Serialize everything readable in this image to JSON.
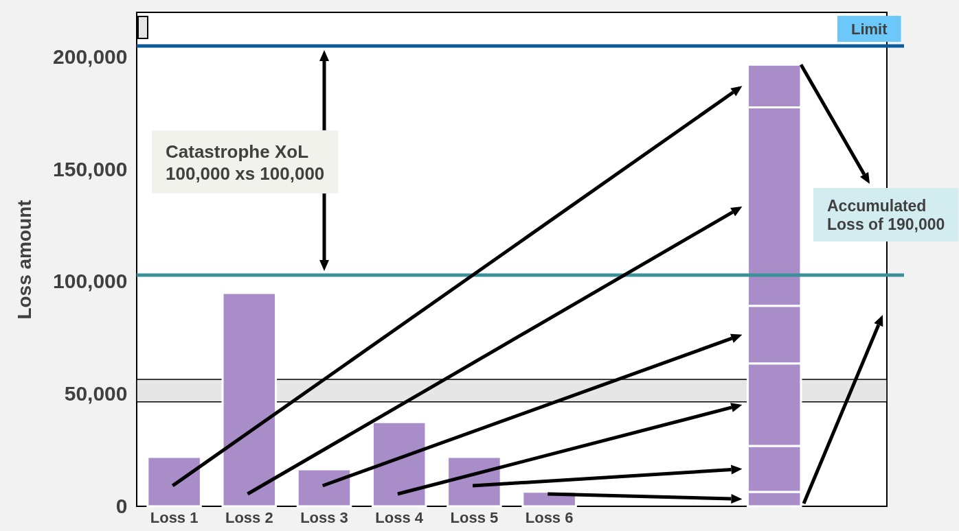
{
  "chart_data": {
    "type": "bar",
    "ylabel": "Loss amount",
    "categories": [
      "Loss 1",
      "Loss 2",
      "Loss 3",
      "Loss 4",
      "Loss 5",
      "Loss 6",
      null,
      null,
      null,
      null
    ],
    "stacked": true,
    "series": [
      {
        "color": "#a98dc8",
        "values": [
          22000,
          95000,
          16500,
          37500,
          22000,
          6500,
          null,
          null,
          6400,
          null
        ]
      },
      {
        "color": "#a98dc8",
        "values": [
          null,
          null,
          null,
          null,
          null,
          null,
          null,
          null,
          20500,
          null
        ]
      },
      {
        "color": "#a98dc8",
        "values": [
          null,
          null,
          null,
          null,
          null,
          null,
          null,
          null,
          36700,
          null
        ]
      },
      {
        "color": "#a98dc8",
        "values": [
          null,
          null,
          null,
          null,
          null,
          null,
          null,
          null,
          25700,
          null
        ]
      },
      {
        "color": "#a98dc8",
        "values": [
          null,
          null,
          null,
          null,
          null,
          null,
          null,
          null,
          88400,
          null
        ]
      },
      {
        "color": "#a98dc8",
        "values": [
          null,
          null,
          null,
          null,
          null,
          null,
          null,
          null,
          19000,
          null
        ]
      }
    ],
    "ylim": [
      0,
      220000
    ],
    "yticks": [
      0,
      {
        "value": 50000,
        "label": "50,000"
      },
      {
        "value": 100000,
        "label": "100,000"
      },
      {
        "value": 150000,
        "label": "150,000"
      },
      {
        "value": 200000,
        "label": "200,000"
      }
    ],
    "ref_lines": [
      {
        "axis": "y",
        "value": 103000,
        "color": "#3a9198"
      },
      {
        "axis": "y",
        "value": 205000,
        "label": "Limit",
        "color": "#0c5a9a"
      }
    ],
    "bands": [
      {
        "axis": "y",
        "from": 46500,
        "to": 56500,
        "color": "#e6e6e6"
      }
    ],
    "annotations": [
      "Catastrophe XoL 100,000 xs 100,000",
      "Accumulated Loss of 190,000"
    ],
    "grid": false
  }
}
